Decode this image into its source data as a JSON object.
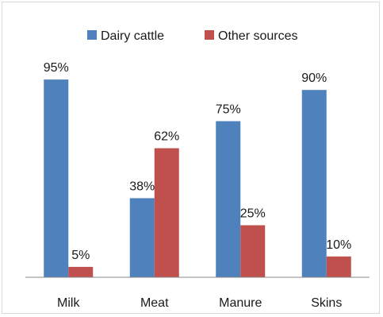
{
  "chart_data": {
    "type": "bar",
    "categories": [
      "Milk",
      "Meat",
      "Manure",
      "Skins"
    ],
    "series": [
      {
        "name": "Dairy cattle",
        "values": [
          95,
          38,
          75,
          90
        ],
        "color": "#4f81bd"
      },
      {
        "name": "Other sources",
        "values": [
          5,
          62,
          25,
          10
        ],
        "color": "#c0504d"
      }
    ],
    "value_format": "{v}%",
    "ylim": [
      0,
      100
    ],
    "grid": false,
    "legend_position": "top"
  }
}
